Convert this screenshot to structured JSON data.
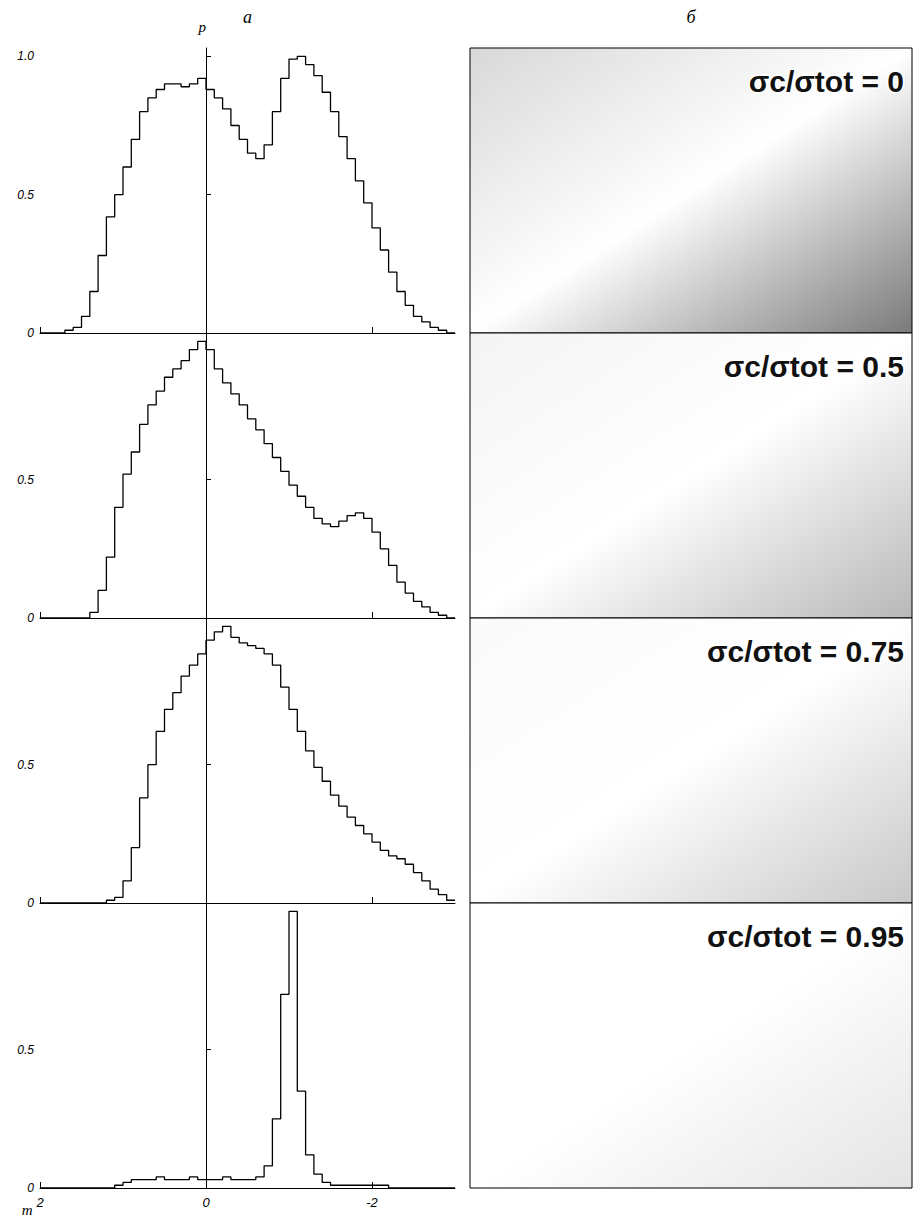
{
  "headers": [
    "а",
    "б"
  ],
  "chart_data": [
    {
      "type": "histogram",
      "ylabel": "p",
      "color": "#000000",
      "annotations": [
        "σc/σtot = 0"
      ],
      "xlim": [
        -3,
        2
      ],
      "xticks": [
        2,
        0,
        -2
      ],
      "ylim": [
        0,
        1.03
      ],
      "yticks": [
        0,
        0.5,
        {
          "value": 1,
          "label": "1.0"
        }
      ],
      "tick_labels": "y",
      "bins": [
        2,
        1.9,
        1.8,
        1.7,
        1.6,
        1.5,
        1.4,
        1.3,
        1.2,
        1.1,
        1,
        0.9,
        0.8,
        0.7,
        0.6,
        0.5,
        0.4,
        0.3,
        0.2,
        0.1,
        0,
        -0.1,
        -0.2,
        -0.3,
        -0.4,
        -0.5,
        -0.6,
        -0.7,
        -0.8,
        -0.9,
        -1,
        -1.1,
        -1.2,
        -1.3,
        -1.4,
        -1.5,
        -1.6,
        -1.7,
        -1.8,
        -1.9,
        -2,
        -2.1,
        -2.2,
        -2.3,
        -2.4,
        -2.5,
        -2.6,
        -2.7,
        -2.8,
        -2.9,
        -3
      ],
      "values": [
        0,
        0,
        0,
        0.01,
        0.02,
        0.06,
        0.15,
        0.28,
        0.42,
        0.5,
        0.6,
        0.7,
        0.8,
        0.85,
        0.88,
        0.9,
        0.9,
        0.89,
        0.9,
        0.92,
        0.88,
        0.85,
        0.81,
        0.75,
        0.7,
        0.65,
        0.63,
        0.68,
        0.8,
        0.92,
        0.99,
        1.0,
        0.97,
        0.93,
        0.87,
        0.8,
        0.71,
        0.63,
        0.55,
        0.47,
        0.38,
        0.3,
        0.22,
        0.15,
        0.1,
        0.06,
        0.04,
        0.02,
        0.01,
        0
      ]
    },
    {
      "type": "histogram",
      "color": "#000000",
      "annotations": [
        "σc/σtot = 0.5"
      ],
      "xlim": [
        -3,
        2
      ],
      "xticks": [
        2,
        0,
        -2
      ],
      "ylim": [
        0,
        1.03
      ],
      "yticks": [
        0,
        0.5
      ],
      "tick_labels": "y",
      "bins": [
        2,
        1.9,
        1.8,
        1.7,
        1.6,
        1.5,
        1.4,
        1.3,
        1.2,
        1.1,
        1,
        0.9,
        0.8,
        0.7,
        0.6,
        0.5,
        0.4,
        0.3,
        0.2,
        0.1,
        0,
        -0.1,
        -0.2,
        -0.3,
        -0.4,
        -0.5,
        -0.6,
        -0.7,
        -0.8,
        -0.9,
        -1,
        -1.1,
        -1.2,
        -1.3,
        -1.4,
        -1.5,
        -1.6,
        -1.7,
        -1.8,
        -1.9,
        -2,
        -2.1,
        -2.2,
        -2.3,
        -2.4,
        -2.5,
        -2.6,
        -2.7,
        -2.8,
        -2.9,
        -3
      ],
      "values": [
        0,
        0,
        0,
        0,
        0,
        0,
        0.02,
        0.1,
        0.22,
        0.4,
        0.52,
        0.6,
        0.7,
        0.77,
        0.82,
        0.87,
        0.9,
        0.93,
        0.97,
        1.0,
        0.97,
        0.9,
        0.85,
        0.81,
        0.77,
        0.72,
        0.68,
        0.63,
        0.58,
        0.53,
        0.48,
        0.44,
        0.4,
        0.36,
        0.34,
        0.33,
        0.35,
        0.37,
        0.38,
        0.36,
        0.31,
        0.25,
        0.19,
        0.13,
        0.09,
        0.06,
        0.04,
        0.02,
        0.01,
        0
      ]
    },
    {
      "type": "histogram",
      "color": "#000000",
      "annotations": [
        "σc/σtot = 0.75"
      ],
      "xlim": [
        -3,
        2
      ],
      "xticks": [
        2,
        0,
        -2
      ],
      "ylim": [
        0,
        1.03
      ],
      "yticks": [
        0,
        0.5
      ],
      "tick_labels": "y",
      "bins": [
        2,
        1.9,
        1.8,
        1.7,
        1.6,
        1.5,
        1.4,
        1.3,
        1.2,
        1.1,
        1,
        0.9,
        0.8,
        0.7,
        0.6,
        0.5,
        0.4,
        0.3,
        0.2,
        0.1,
        0,
        -0.1,
        -0.2,
        -0.3,
        -0.4,
        -0.5,
        -0.6,
        -0.7,
        -0.8,
        -0.9,
        -1,
        -1.1,
        -1.2,
        -1.3,
        -1.4,
        -1.5,
        -1.6,
        -1.7,
        -1.8,
        -1.9,
        -2,
        -2.1,
        -2.2,
        -2.3,
        -2.4,
        -2.5,
        -2.6,
        -2.7,
        -2.8,
        -2.9,
        -3
      ],
      "values": [
        0,
        0,
        0,
        0,
        0,
        0,
        0,
        0,
        0.01,
        0.02,
        0.08,
        0.2,
        0.38,
        0.5,
        0.62,
        0.7,
        0.76,
        0.82,
        0.86,
        0.9,
        0.95,
        0.98,
        1.0,
        0.96,
        0.94,
        0.93,
        0.92,
        0.9,
        0.86,
        0.78,
        0.7,
        0.62,
        0.55,
        0.49,
        0.44,
        0.39,
        0.35,
        0.31,
        0.28,
        0.25,
        0.22,
        0.19,
        0.17,
        0.16,
        0.14,
        0.11,
        0.08,
        0.05,
        0.03,
        0.01
      ]
    },
    {
      "type": "histogram",
      "xlabel": "m",
      "color": "#000000",
      "annotations": [
        "σc/σtot = 0.95"
      ],
      "xlim": [
        -3,
        2
      ],
      "xticks": [
        2,
        0,
        -2
      ],
      "ylim": [
        0,
        1.03
      ],
      "yticks": [
        0,
        0.5
      ],
      "bins": [
        2,
        1.9,
        1.8,
        1.7,
        1.6,
        1.5,
        1.4,
        1.3,
        1.2,
        1.1,
        1,
        0.9,
        0.8,
        0.7,
        0.6,
        0.5,
        0.4,
        0.3,
        0.2,
        0.1,
        0,
        -0.1,
        -0.2,
        -0.3,
        -0.4,
        -0.5,
        -0.6,
        -0.7,
        -0.8,
        -0.9,
        -1,
        -1.1,
        -1.2,
        -1.3,
        -1.4,
        -1.5,
        -1.6,
        -1.7,
        -1.8,
        -1.9,
        -2,
        -2.1,
        -2.2,
        -2.3,
        -2.4,
        -2.5,
        -2.6,
        -2.7,
        -2.8,
        -2.9,
        -3
      ],
      "values": [
        0,
        0,
        0,
        0,
        0,
        0,
        0,
        0,
        0,
        0.01,
        0.02,
        0.03,
        0.03,
        0.03,
        0.04,
        0.03,
        0.03,
        0.03,
        0.04,
        0.03,
        0.03,
        0.03,
        0.04,
        0.03,
        0.03,
        0.03,
        0.04,
        0.08,
        0.25,
        0.7,
        1.0,
        0.35,
        0.12,
        0.05,
        0.02,
        0.01,
        0.01,
        0.01,
        0.01,
        0.01,
        0.01,
        0.01,
        0,
        0,
        0,
        0,
        0,
        0,
        0,
        0
      ]
    }
  ]
}
